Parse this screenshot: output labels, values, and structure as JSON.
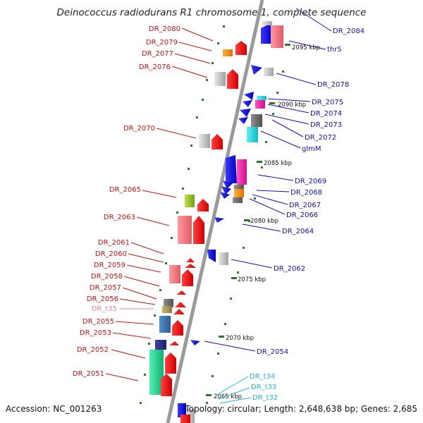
{
  "title": "Deinococcus radiodurans R1 chromosome 1, complete sequence",
  "accession": "Accession: NC_001263",
  "topology": "Topology: circular; Length: 2,648,638 bp; Genes: 2,685",
  "colors": {
    "reverse_label": "#d01010",
    "forward_label": "#1010c0",
    "rna_rev_label": "#e080c0",
    "rna_fwd_label": "#20b8d8",
    "backbone": "#9a9a9a",
    "tick": "#2a7a2a"
  },
  "scale_labels": [
    "2095 kbp",
    "2090 kbp",
    "2085 kbp",
    "2080 kbp",
    "2075 kbp",
    "2070 kbp",
    "2065 kbp"
  ],
  "left_labels": [
    "DR_2080",
    "DR_2079",
    "DR_2077",
    "DR_2076",
    "DR_2070",
    "DR_2065",
    "DR_2063",
    "DR_2061",
    "DR_2060",
    "DR_2059",
    "DR_2058",
    "DR_2057",
    "DR_2056",
    "DR_t35",
    "DR_2055",
    "DR_2053",
    "DR_2052",
    "DR_2051"
  ],
  "right_labels": [
    "DR_2084",
    "thrS",
    "DR_2078",
    "DR_2075",
    "DR_2074",
    "DR_2073",
    "DR_2072",
    "glmM",
    "DR_2069",
    "DR_2068",
    "DR_2067",
    "DR_2066",
    "DR_2064",
    "DR_2062",
    "DR_2054",
    "DR_t34",
    "DR_t33",
    "DR_t32"
  ]
}
